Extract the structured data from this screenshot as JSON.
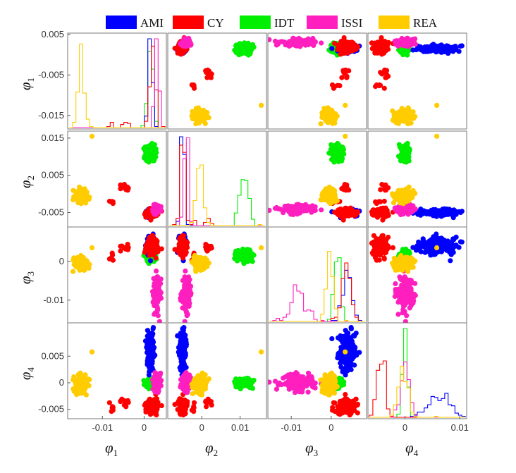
{
  "chart_data": {
    "type": "scatter",
    "subtype": "scatter-matrix",
    "grid": false,
    "legend_position": "top",
    "legend": [
      {
        "name": "AMI",
        "color": "#0000ff"
      },
      {
        "name": "CY",
        "color": "#ff0000"
      },
      {
        "name": "IDT",
        "color": "#00ee00"
      },
      {
        "name": "ISSI",
        "color": "#ff1fbf"
      },
      {
        "name": "REA",
        "color": "#ffcc00"
      }
    ],
    "variables": [
      {
        "symbol": "φ",
        "subscript": "1",
        "range": [
          -0.018,
          0.005
        ],
        "y_ticks": [
          {
            "v": 0.005,
            "label": "0.005"
          },
          {
            "v": -0.005,
            "label": "-0.005"
          },
          {
            "v": -0.015,
            "label": "-0.015"
          }
        ],
        "x_ticks": [
          {
            "v": -0.01,
            "label": "-0.01"
          },
          {
            "v": 0,
            "label": "0"
          }
        ]
      },
      {
        "symbol": "φ",
        "subscript": "2",
        "range": [
          -0.0085,
          0.0165
        ],
        "y_ticks": [
          {
            "v": 0.015,
            "label": "0.015"
          },
          {
            "v": 0.005,
            "label": "0.005"
          },
          {
            "v": -0.005,
            "label": "-0.005"
          }
        ],
        "x_ticks": [
          {
            "v": 0,
            "label": "0"
          },
          {
            "v": 0.01,
            "label": "0.01"
          }
        ]
      },
      {
        "symbol": "φ",
        "subscript": "3",
        "range": [
          -0.0155,
          0.0085
        ],
        "y_ticks": [
          {
            "v": 0,
            "label": "0"
          },
          {
            "v": -0.01,
            "label": "-0.01"
          }
        ],
        "x_ticks": [
          {
            "v": -0.01,
            "label": "-0.01"
          },
          {
            "v": 0,
            "label": "0"
          }
        ]
      },
      {
        "symbol": "φ",
        "subscript": "4",
        "range": [
          -0.0065,
          0.011
        ],
        "y_ticks": [
          {
            "v": 0.005,
            "label": "0.005"
          },
          {
            "v": 0,
            "label": "0"
          },
          {
            "v": -0.005,
            "label": "-0.005"
          }
        ],
        "x_ticks": [
          {
            "v": 0,
            "label": "0"
          },
          {
            "v": 0.01,
            "label": "0.01"
          }
        ]
      }
    ],
    "groups": {
      "AMI": {
        "mean": [
          0.0015,
          -0.005,
          0.004,
          0.0062
        ],
        "sd": [
          0.0004,
          0.0004,
          0.0011,
          0.0018
        ]
      },
      "CY": {
        "mean": [
          0.002,
          -0.005,
          0.004,
          -0.0045
        ],
        "sd": [
          0.0007,
          0.0005,
          0.0011,
          0.0007
        ]
      },
      "IDT": {
        "mean": [
          0.0015,
          0.011,
          0.0015,
          0.0
        ],
        "sd": [
          0.0006,
          0.0011,
          0.0007,
          0.0004
        ]
      },
      "ISSI": {
        "mean": [
          0.003,
          -0.004,
          -0.008,
          0.0
        ],
        "sd": [
          0.0004,
          0.0005,
          0.002,
          0.0007
        ]
      },
      "REA": {
        "mean": [
          -0.0152,
          -0.0005,
          -0.0005,
          -0.0005
        ],
        "sd": [
          0.0007,
          0.0009,
          0.0007,
          0.0008
        ]
      }
    },
    "sub_clusters": [
      {
        "series": "CY",
        "mean": [
          -0.0042,
          0.0015,
          0.0035,
          -0.0034
        ],
        "sd": [
          0.0006,
          0.0005,
          0.0006,
          0.0005
        ],
        "count": 12
      },
      {
        "series": "CY",
        "mean": [
          -0.008,
          -0.002,
          0.001,
          -0.0045
        ],
        "sd": [
          0.0004,
          0.0003,
          0.0005,
          0.0005
        ],
        "count": 6
      }
    ],
    "outliers": [
      {
        "series": "REA",
        "values": [
          -0.0125,
          0.0155,
          0.0035,
          0.0058
        ]
      }
    ]
  }
}
